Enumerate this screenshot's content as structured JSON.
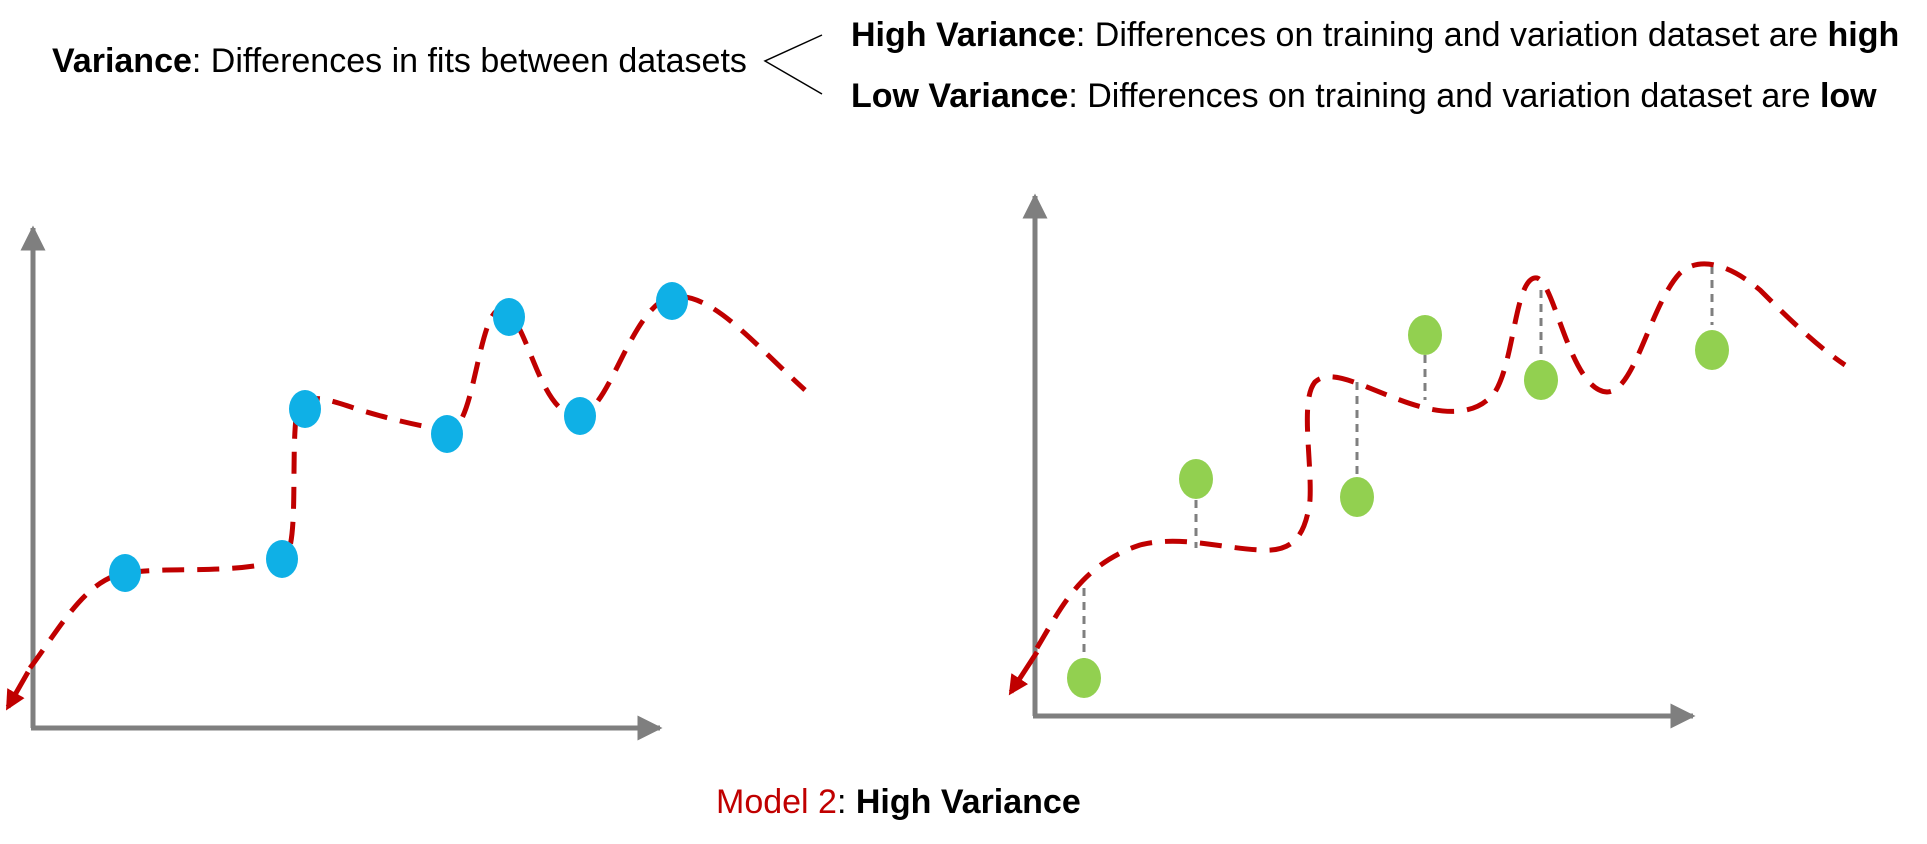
{
  "header": {
    "variance_term": "Variance",
    "variance_def": ": Differences in fits between datasets",
    "high_term": "High Variance",
    "high_def": ": Differences on training and variation dataset are ",
    "high_emph": "high",
    "low_term": "Low Variance",
    "low_def": ": Differences on training and variation dataset are ",
    "low_emph": "low"
  },
  "caption": {
    "model": "Model 2",
    "sep": ": ",
    "label": "High Variance"
  },
  "colors": {
    "axis": "#7f7f7f",
    "curve": "#c00000",
    "training_point": "#0fb0e6",
    "validation_point": "#92d050",
    "residual": "#7f7f7f"
  }
}
